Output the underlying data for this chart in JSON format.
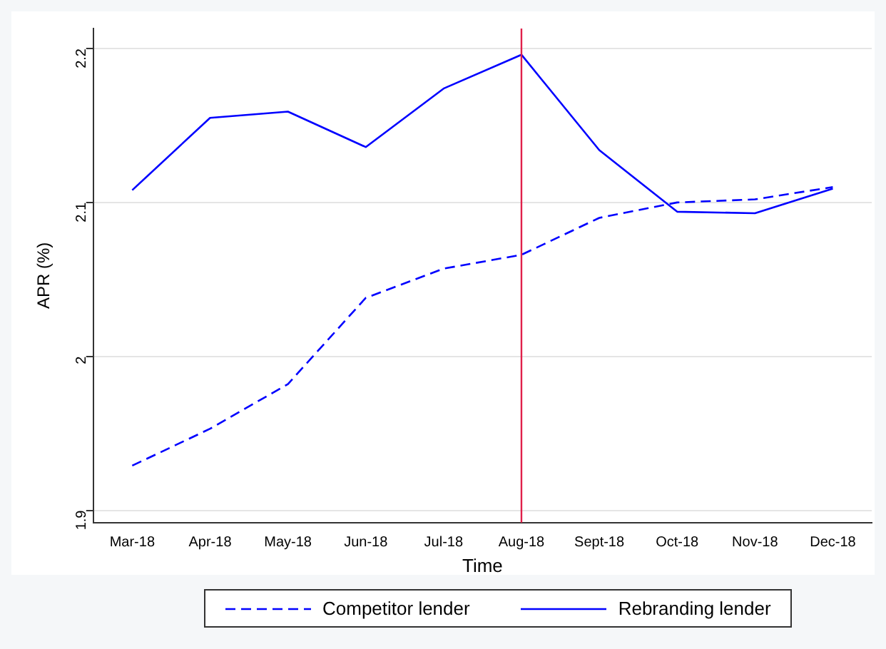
{
  "chart_data": {
    "type": "line",
    "xlabel": "Time",
    "ylabel": "APR (%)",
    "categories": [
      "Mar-18",
      "Apr-18",
      "May-18",
      "Jun-18",
      "Jul-18",
      "Aug-18",
      "Sept-18",
      "Oct-18",
      "Nov-18",
      "Dec-18"
    ],
    "series": [
      {
        "name": "Competitor lender",
        "color": "#0000ff",
        "line_style": "dashed",
        "values": [
          1.929,
          1.953,
          1.982,
          2.038,
          2.057,
          2.066,
          2.09,
          2.1,
          2.102,
          2.11
        ]
      },
      {
        "name": "Rebranding lender",
        "color": "#0000ff",
        "line_style": "solid",
        "values": [
          2.108,
          2.155,
          2.159,
          2.136,
          2.174,
          2.196,
          2.134,
          2.094,
          2.093,
          2.109
        ]
      }
    ],
    "ylim": [
      1.892,
      2.213
    ],
    "yticks": [
      1.9,
      2,
      2.1,
      2.2
    ],
    "grid": "y",
    "legend": "bottom",
    "marker": "none",
    "ref_lines": [
      {
        "axis": "x",
        "value": "Aug-18",
        "color": "#e0204a"
      }
    ]
  }
}
